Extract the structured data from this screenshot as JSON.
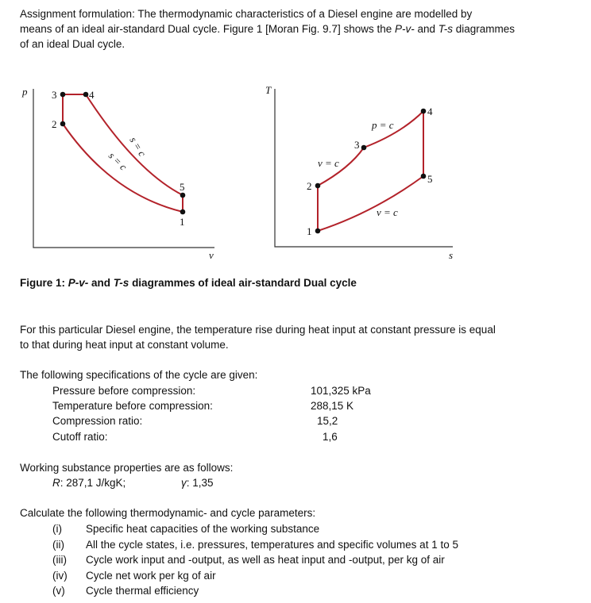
{
  "intro": {
    "line1": "Assignment formulation:  The thermodynamic characteristics of a Diesel engine are modelled by",
    "line2": "means of an ideal air-standard Dual cycle.  Figure 1 [Moran Fig. 9.7] shows the ",
    "line2_pv": "P-v-",
    "line2_and": " and ",
    "line2_ts": "T-s",
    "line2_end": " diagrammes",
    "line3": "of an ideal Dual cycle."
  },
  "figure": {
    "pv": {
      "y_axis": "p",
      "x_axis": "v",
      "points": [
        "1",
        "2",
        "3",
        "4",
        "5"
      ],
      "isentrope_upper": "s = c",
      "isentrope_lower": "s = c"
    },
    "ts": {
      "y_axis": "T",
      "x_axis": "s",
      "points": [
        "1",
        "2",
        "3",
        "4",
        "5"
      ],
      "label_23": "v = c",
      "label_34": "p = c",
      "label_51": "v = c"
    },
    "caption_prefix": "Figure 1:  ",
    "caption_pv": "P-v-",
    "caption_and": " and ",
    "caption_ts": "T-s",
    "caption_rest": " diagrammes of ideal air-standard Dual cycle",
    "curve_color": "#b3222a"
  },
  "paragraph": {
    "line1": "For this particular Diesel engine, the temperature rise during heat input at constant pressure is equal",
    "line2": "to that during heat input at constant volume."
  },
  "specs": {
    "heading": "The following specifications of the cycle are given:",
    "items": [
      {
        "label": "Pressure before compression:",
        "value": "101,325 kPa"
      },
      {
        "label": "Temperature before compression:",
        "value": "288,15 K"
      },
      {
        "label": "Compression ratio:",
        "value": "15,2"
      },
      {
        "label": "Cutoff ratio:",
        "value": "1,6"
      }
    ]
  },
  "properties": {
    "heading": "Working substance properties are as follows:",
    "R_symbol": "R",
    "R_value": ":  287,1 J/kgK;",
    "gamma_symbol": "γ",
    "gamma_value": ":  1,35"
  },
  "tasks": {
    "heading": "Calculate the following thermodynamic- and cycle parameters:",
    "items": [
      {
        "num": "(i)",
        "text": "Specific heat capacities of the working substance"
      },
      {
        "num": "(ii)",
        "text": "All the cycle states, i.e. pressures, temperatures and specific volumes at 1 to 5"
      },
      {
        "num": "(iii)",
        "text": "Cycle work input and -output, as well as heat input and -output, per kg of air"
      },
      {
        "num": "(iv)",
        "text": "Cycle net work per kg of air"
      },
      {
        "num": "(v)",
        "text": "Cycle thermal efficiency"
      }
    ]
  }
}
